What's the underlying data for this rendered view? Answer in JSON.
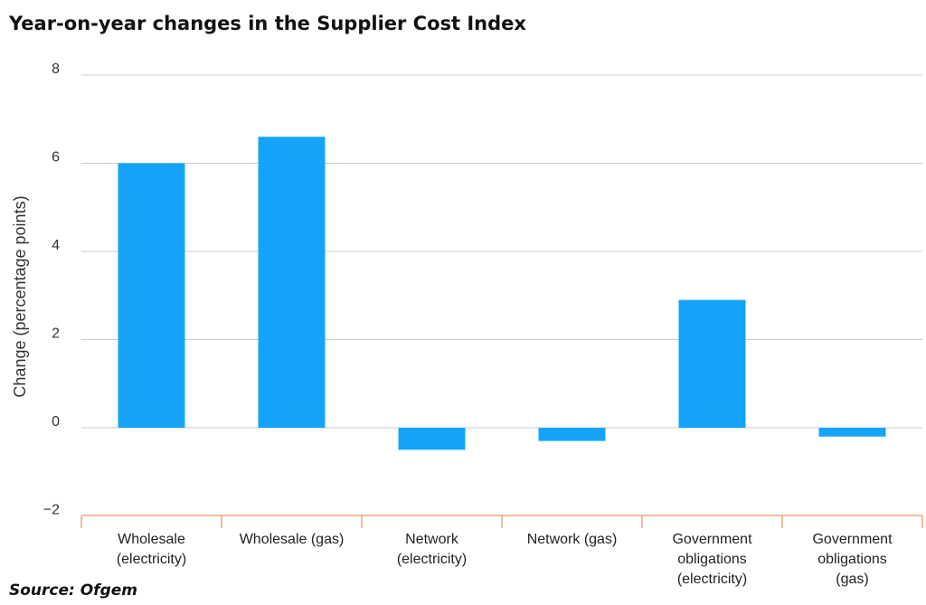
{
  "chart_data": {
    "type": "bar",
    "title": "Year-on-year changes in the Supplier Cost Index",
    "ylabel": "Change (percentage points)",
    "xlabel": "",
    "source": "Source: Ofgem",
    "categories": [
      [
        "Wholesale",
        "(electricity)"
      ],
      [
        "Wholesale (gas)"
      ],
      [
        "Network",
        "(electricity)"
      ],
      [
        "Network (gas)"
      ],
      [
        "Government",
        "obligations",
        "(electricity)"
      ],
      [
        "Government",
        "obligations",
        "(gas)"
      ]
    ],
    "values": [
      6.0,
      6.6,
      -0.5,
      -0.3,
      2.9,
      -0.2
    ],
    "yticks": [
      8,
      6,
      4,
      2,
      0,
      -2
    ],
    "ytick_labels": [
      "8",
      "6",
      "4",
      "2",
      "0",
      "−2"
    ],
    "ylim": [
      -2,
      8
    ],
    "grid": true,
    "legend": "none",
    "colors": {
      "bar": "#14a5fa",
      "grid": "#cccccc",
      "axis": "#e8a880"
    }
  }
}
